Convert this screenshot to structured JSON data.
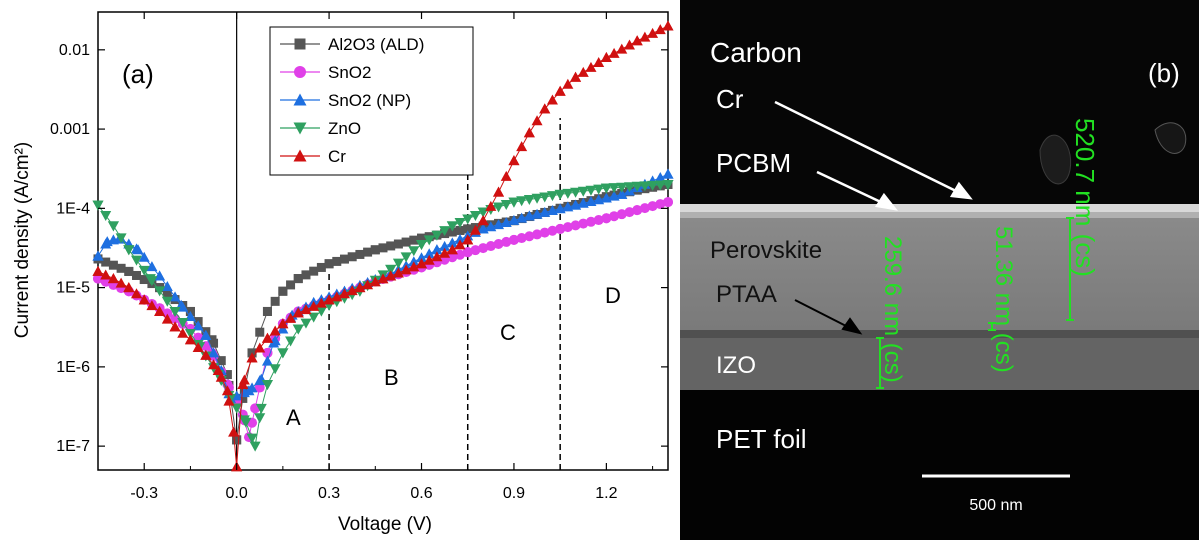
{
  "panel_a": {
    "label": "(a)",
    "region_labels": [
      "A",
      "B",
      "C",
      "D"
    ],
    "legend": [
      "Al2O3 (ALD)",
      "SnO2",
      "SnO2 (NP)",
      "ZnO",
      "Cr"
    ],
    "colors": {
      "Al2O3 (ALD)": "#555555",
      "SnO2": "#e040e8",
      "SnO2 (NP)": "#1e6fe0",
      "ZnO": "#2fa060",
      "Cr": "#d01010"
    }
  },
  "chart_data": {
    "type": "scatter",
    "xlabel": "Voltage (V)",
    "ylabel": "Current density (A/cm²)",
    "xlim": [
      -0.45,
      1.4
    ],
    "ylim": [
      5e-08,
      0.03
    ],
    "yscale": "log",
    "x_ticks": [
      "-0.3",
      "0.0",
      "0.3",
      "0.6",
      "0.9",
      "1.2"
    ],
    "y_ticks": [
      "1E-7",
      "1E-6",
      "1E-5",
      "1E-4",
      "0.001",
      "0.01"
    ],
    "region_boundaries_v": [
      0.3,
      0.75,
      1.05
    ],
    "series": [
      {
        "name": "Al2O3 (ALD)",
        "marker": "square",
        "points": [
          [
            -0.45,
            2.3e-05
          ],
          [
            -0.35,
            1.6e-05
          ],
          [
            -0.25,
            1e-05
          ],
          [
            -0.15,
            5e-06
          ],
          [
            -0.08,
            2.2e-06
          ],
          [
            -0.03,
            8e-07
          ],
          [
            0.0,
            1.2e-07
          ],
          [
            0.02,
            4e-07
          ],
          [
            0.05,
            1.5e-06
          ],
          [
            0.1,
            5e-06
          ],
          [
            0.15,
            9e-06
          ],
          [
            0.2,
            1.3e-05
          ],
          [
            0.3,
            2e-05
          ],
          [
            0.45,
            3e-05
          ],
          [
            0.6,
            4.2e-05
          ],
          [
            0.75,
            5.5e-05
          ],
          [
            0.9,
            7e-05
          ],
          [
            1.05,
            0.0001
          ],
          [
            1.2,
            0.00014
          ],
          [
            1.3,
            0.00017
          ],
          [
            1.4,
            0.0002
          ]
        ]
      },
      {
        "name": "SnO2",
        "marker": "circle",
        "points": [
          [
            -0.45,
            1.3e-05
          ],
          [
            -0.35,
            9e-06
          ],
          [
            -0.25,
            5.5e-06
          ],
          [
            -0.15,
            3e-06
          ],
          [
            -0.08,
            1.5e-06
          ],
          [
            -0.03,
            6e-07
          ],
          [
            0.02,
            2.5e-07
          ],
          [
            0.04,
            1.3e-07
          ],
          [
            0.06,
            3e-07
          ],
          [
            0.1,
            1.5e-06
          ],
          [
            0.15,
            3.5e-06
          ],
          [
            0.2,
            5e-06
          ],
          [
            0.3,
            7e-06
          ],
          [
            0.45,
            1.2e-05
          ],
          [
            0.6,
            1.8e-05
          ],
          [
            0.75,
            2.8e-05
          ],
          [
            0.9,
            4e-05
          ],
          [
            1.05,
            5.5e-05
          ],
          [
            1.2,
            7.5e-05
          ],
          [
            1.3,
            9.5e-05
          ],
          [
            1.4,
            0.00012
          ]
        ]
      },
      {
        "name": "SnO2 (NP)",
        "marker": "triangle-up",
        "points": [
          [
            -0.45,
            2.5e-05
          ],
          [
            -0.42,
            3.8e-05
          ],
          [
            -0.38,
            4.2e-05
          ],
          [
            -0.32,
            3e-05
          ],
          [
            -0.25,
            1.4e-05
          ],
          [
            -0.18,
            6e-06
          ],
          [
            -0.1,
            2.5e-06
          ],
          [
            -0.05,
            9e-07
          ],
          [
            -0.02,
            4e-07
          ],
          [
            0.04,
            5e-07
          ],
          [
            0.08,
            7e-07
          ],
          [
            0.12,
            2e-06
          ],
          [
            0.18,
            4.5e-06
          ],
          [
            0.25,
            6.5e-06
          ],
          [
            0.35,
            9e-06
          ],
          [
            0.5,
            1.5e-05
          ],
          [
            0.65,
            3e-05
          ],
          [
            0.8,
            5.5e-05
          ],
          [
            0.95,
            8e-05
          ],
          [
            1.1,
            0.00011
          ],
          [
            1.25,
            0.00015
          ],
          [
            1.4,
            0.00027
          ]
        ]
      },
      {
        "name": "ZnO",
        "marker": "triangle-down",
        "points": [
          [
            -0.45,
            0.00011
          ],
          [
            -0.4,
            6e-05
          ],
          [
            -0.35,
            3e-05
          ],
          [
            -0.28,
            1.3e-05
          ],
          [
            -0.2,
            5e-06
          ],
          [
            -0.12,
            1.8e-06
          ],
          [
            -0.06,
            8e-07
          ],
          [
            -0.02,
            4e-07
          ],
          [
            0.03,
            2e-07
          ],
          [
            0.06,
            1e-07
          ],
          [
            0.08,
            3e-07
          ],
          [
            0.1,
            6e-07
          ],
          [
            0.15,
            1.5e-06
          ],
          [
            0.2,
            3e-06
          ],
          [
            0.3,
            6e-06
          ],
          [
            0.4,
            9e-06
          ],
          [
            0.5,
            1.7e-05
          ],
          [
            0.6,
            3.5e-05
          ],
          [
            0.7,
            6e-05
          ],
          [
            0.8,
            9e-05
          ],
          [
            0.9,
            0.00012
          ],
          [
            1.05,
            0.00015
          ],
          [
            1.2,
            0.00018
          ],
          [
            1.4,
            0.0002
          ]
        ]
      },
      {
        "name": "Cr",
        "marker": "triangle-up",
        "points": [
          [
            -0.45,
            1.6e-05
          ],
          [
            -0.4,
            1.3e-05
          ],
          [
            -0.35,
            1e-05
          ],
          [
            -0.3,
            7e-06
          ],
          [
            -0.25,
            5e-06
          ],
          [
            -0.2,
            3.2e-06
          ],
          [
            -0.15,
            2.2e-06
          ],
          [
            -0.1,
            1.4e-06
          ],
          [
            -0.06,
            9e-07
          ],
          [
            -0.03,
            5e-07
          ],
          [
            -0.01,
            1.5e-07
          ],
          [
            0.0,
            5.5e-08
          ],
          [
            0.02,
            6e-07
          ],
          [
            0.05,
            1.3e-06
          ],
          [
            0.1,
            2.3e-06
          ],
          [
            0.15,
            3.5e-06
          ],
          [
            0.2,
            4.8e-06
          ],
          [
            0.3,
            7e-06
          ],
          [
            0.4,
            1e-05
          ],
          [
            0.5,
            1.4e-05
          ],
          [
            0.6,
            2e-05
          ],
          [
            0.7,
            3e-05
          ],
          [
            0.75,
            4e-05
          ],
          [
            0.8,
            7e-05
          ],
          [
            0.85,
            0.00016
          ],
          [
            0.9,
            0.0004
          ],
          [
            0.95,
            0.0009
          ],
          [
            1.0,
            0.0018
          ],
          [
            1.05,
            0.003
          ],
          [
            1.1,
            0.0045
          ],
          [
            1.2,
            0.008
          ],
          [
            1.3,
            0.013
          ],
          [
            1.4,
            0.02
          ]
        ]
      }
    ]
  },
  "panel_b": {
    "label": "(b)",
    "layers": [
      "Carbon",
      "Cr",
      "PCBM",
      "Perovskite",
      "PTAA",
      "IZO",
      "PET foil"
    ],
    "measurements": [
      "520.7 nm (cs)",
      "51.36 nm (cs)",
      "259.6 nm (cs)"
    ],
    "scalebar": "500 nm",
    "colors": {
      "measure": "#22e022",
      "label": "#ffffff"
    }
  }
}
